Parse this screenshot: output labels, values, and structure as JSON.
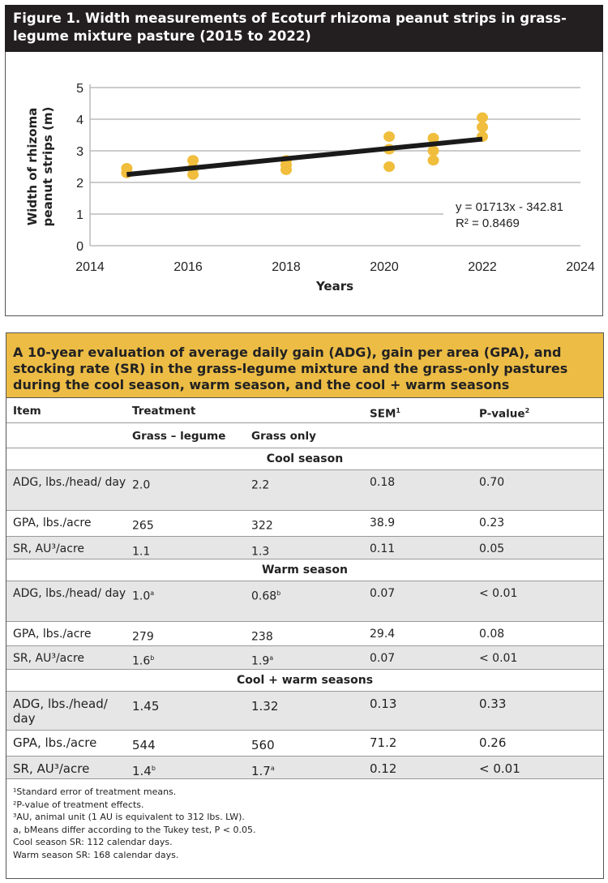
{
  "figure_title": "Figure 1. Width measurements of Ecoturf rhizoma peanut strips in grass-legume mixture pasture (2015 to 2022)",
  "chart_data": {
    "type": "scatter",
    "xlabel": "Years",
    "ylabel": "Width of rhizoma peanut strips (m)",
    "xlim": [
      2014,
      2024
    ],
    "ylim": [
      0,
      5
    ],
    "xticks": [
      "2014",
      "2016",
      "2018",
      "2020",
      "2022",
      "2024"
    ],
    "yticks": [
      "0",
      "1",
      "2",
      "3",
      "4",
      "5"
    ],
    "grid": "horizontal",
    "point_color": "#f0be3c",
    "trend_color": "#1a1a1a",
    "points": [
      {
        "x": 2014.75,
        "y": 2.45
      },
      {
        "x": 2014.75,
        "y": 2.3
      },
      {
        "x": 2016.1,
        "y": 2.7
      },
      {
        "x": 2016.1,
        "y": 2.45
      },
      {
        "x": 2016.1,
        "y": 2.25
      },
      {
        "x": 2018,
        "y": 2.7
      },
      {
        "x": 2018,
        "y": 2.55
      },
      {
        "x": 2018,
        "y": 2.4
      },
      {
        "x": 2020.1,
        "y": 3.45
      },
      {
        "x": 2020.1,
        "y": 3.05
      },
      {
        "x": 2020.1,
        "y": 2.5
      },
      {
        "x": 2021,
        "y": 3.4
      },
      {
        "x": 2021,
        "y": 3.0
      },
      {
        "x": 2021,
        "y": 2.7
      },
      {
        "x": 2022,
        "y": 4.05
      },
      {
        "x": 2022,
        "y": 3.75
      },
      {
        "x": 2022,
        "y": 3.45
      }
    ],
    "trendline": {
      "x": [
        2014.75,
        2022
      ],
      "y": [
        2.25,
        3.37
      ]
    },
    "equation": "y = 01713x - 342.81",
    "r2": "R² = 0.8469"
  },
  "table": {
    "title": "A 10-year evaluation of average daily gain (ADG), gain per area (GPA), and stocking rate (SR) in the grass-legume mixture and the grass-only pastures during the cool season, warm season, and the cool + warm seasons",
    "headers": {
      "item": "Item",
      "treatment": "Treatment",
      "sem": "SEM",
      "sem_sup": "1",
      "p": "P-value",
      "p_sup": "2"
    },
    "subheaders": {
      "gl": "Grass – legume",
      "go": "Grass only"
    },
    "sections": [
      {
        "name": "Cool season",
        "rows": [
          {
            "item": "ADG, lbs./head/ day",
            "gl": "2.0",
            "gl_sup": "",
            "go": "2.2",
            "go_sup": "",
            "sem": "0.18",
            "p": "0.70"
          },
          {
            "item": "GPA, lbs./acre",
            "gl": "265",
            "gl_sup": "",
            "go": "322",
            "go_sup": "",
            "sem": "38.9",
            "p": "0.23"
          },
          {
            "item": "SR, AU³/acre",
            "gl": "1.1",
            "gl_sup": "",
            "go": "1.3",
            "go_sup": "",
            "sem": "0.11",
            "p": "0.05"
          }
        ]
      },
      {
        "name": "Warm season",
        "rows": [
          {
            "item": "ADG, lbs./head/ day",
            "gl": "1.0",
            "gl_sup": "a",
            "go": "0.68",
            "go_sup": "b",
            "sem": "0.07",
            "p": "< 0.01"
          },
          {
            "item": "GPA, lbs./acre",
            "gl": "279",
            "gl_sup": "",
            "go": "238",
            "go_sup": "",
            "sem": "29.4",
            "p": "0.08"
          },
          {
            "item": "SR, AU³/acre",
            "gl": "1.6",
            "gl_sup": "b",
            "go": "1.9",
            "go_sup": "a",
            "sem": "0.07",
            "p": "< 0.01"
          }
        ]
      },
      {
        "name": "Cool + warm seasons",
        "rows": [
          {
            "item": "ADG, lbs./head/ day",
            "gl": "1.45",
            "gl_sup": "",
            "go": "1.32",
            "go_sup": "",
            "sem": "0.13",
            "p": "0.33"
          },
          {
            "item": "GPA, lbs./acre",
            "gl": "544",
            "gl_sup": "",
            "go": "560",
            "go_sup": "",
            "sem": "71.2",
            "p": "0.26"
          },
          {
            "item": "SR, AU³/acre",
            "gl": "1.4",
            "gl_sup": "b",
            "go": "1.7",
            "go_sup": "a",
            "sem": "0.12",
            "p": "< 0.01"
          }
        ]
      }
    ],
    "footnotes": [
      "¹Standard error of treatment means.",
      "²P-value of treatment effects.",
      "³AU, animal unit (1 AU is equivalent to 312 lbs. LW).",
      "a, bMeans differ according to the Tukey test, P < 0.05.",
      "Cool season SR: 112 calendar days.",
      "Warm season SR: 168 calendar days."
    ]
  }
}
